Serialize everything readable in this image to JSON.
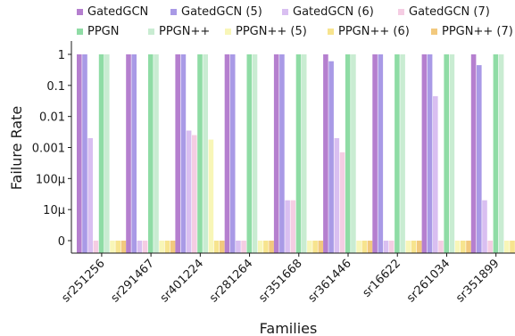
{
  "chart_data": {
    "type": "bar",
    "title": "",
    "xlabel": "Families",
    "ylabel": "Failure Rate",
    "y_scale": "symlog",
    "y_tick_labels": [
      "0",
      "10μ",
      "100μ",
      "0.001",
      "0.01",
      "0.1",
      "1"
    ],
    "y_tick_values": [
      0,
      1e-05,
      0.0001,
      0.001,
      0.01,
      0.1,
      1
    ],
    "grid": false,
    "legend_position": "top",
    "categories": [
      "sr251256",
      "sr291467",
      "sr401224",
      "sr281264",
      "sr351668",
      "sr361446",
      "sr16622",
      "sr261034",
      "sr351899"
    ],
    "series": [
      {
        "name": "GatedGCN",
        "color": "#b57fcf",
        "values": [
          1,
          1,
          1,
          1,
          1,
          1,
          1,
          1,
          1
        ]
      },
      {
        "name": "GatedGCN (5)",
        "color": "#a99ae6",
        "values": [
          1,
          1,
          1,
          1,
          1,
          0.6,
          1,
          1,
          0.45
        ]
      },
      {
        "name": "GatedGCN (6)",
        "color": "#d9bff1",
        "values": [
          0.002,
          0,
          0.0035,
          0,
          2e-05,
          0.002,
          0,
          0.045,
          2e-05
        ]
      },
      {
        "name": "GatedGCN (7)",
        "color": "#f5cde3",
        "values": [
          0,
          0,
          0.0025,
          0,
          2e-05,
          0.0007,
          0,
          0,
          0
        ]
      },
      {
        "name": "PPGN",
        "color": "#8fdca5",
        "values": [
          1,
          1,
          1,
          1,
          1,
          1,
          1,
          1,
          1
        ]
      },
      {
        "name": "PPGN++",
        "color": "#c9ecd2",
        "values": [
          1,
          1,
          1,
          1,
          1,
          1,
          1,
          1,
          1
        ]
      },
      {
        "name": "PPGN++ (5)",
        "color": "#f8f6b8",
        "values": [
          0,
          0,
          0.0018,
          0,
          0,
          0,
          0,
          0,
          0
        ]
      },
      {
        "name": "PPGN++ (6)",
        "color": "#f7e48e",
        "values": [
          0,
          0,
          0,
          0,
          0,
          0,
          0,
          0,
          0
        ]
      },
      {
        "name": "PPGN++ (7)",
        "color": "#f2c97e",
        "values": [
          0,
          0,
          0,
          0,
          0,
          0,
          0,
          0,
          0
        ]
      }
    ]
  }
}
